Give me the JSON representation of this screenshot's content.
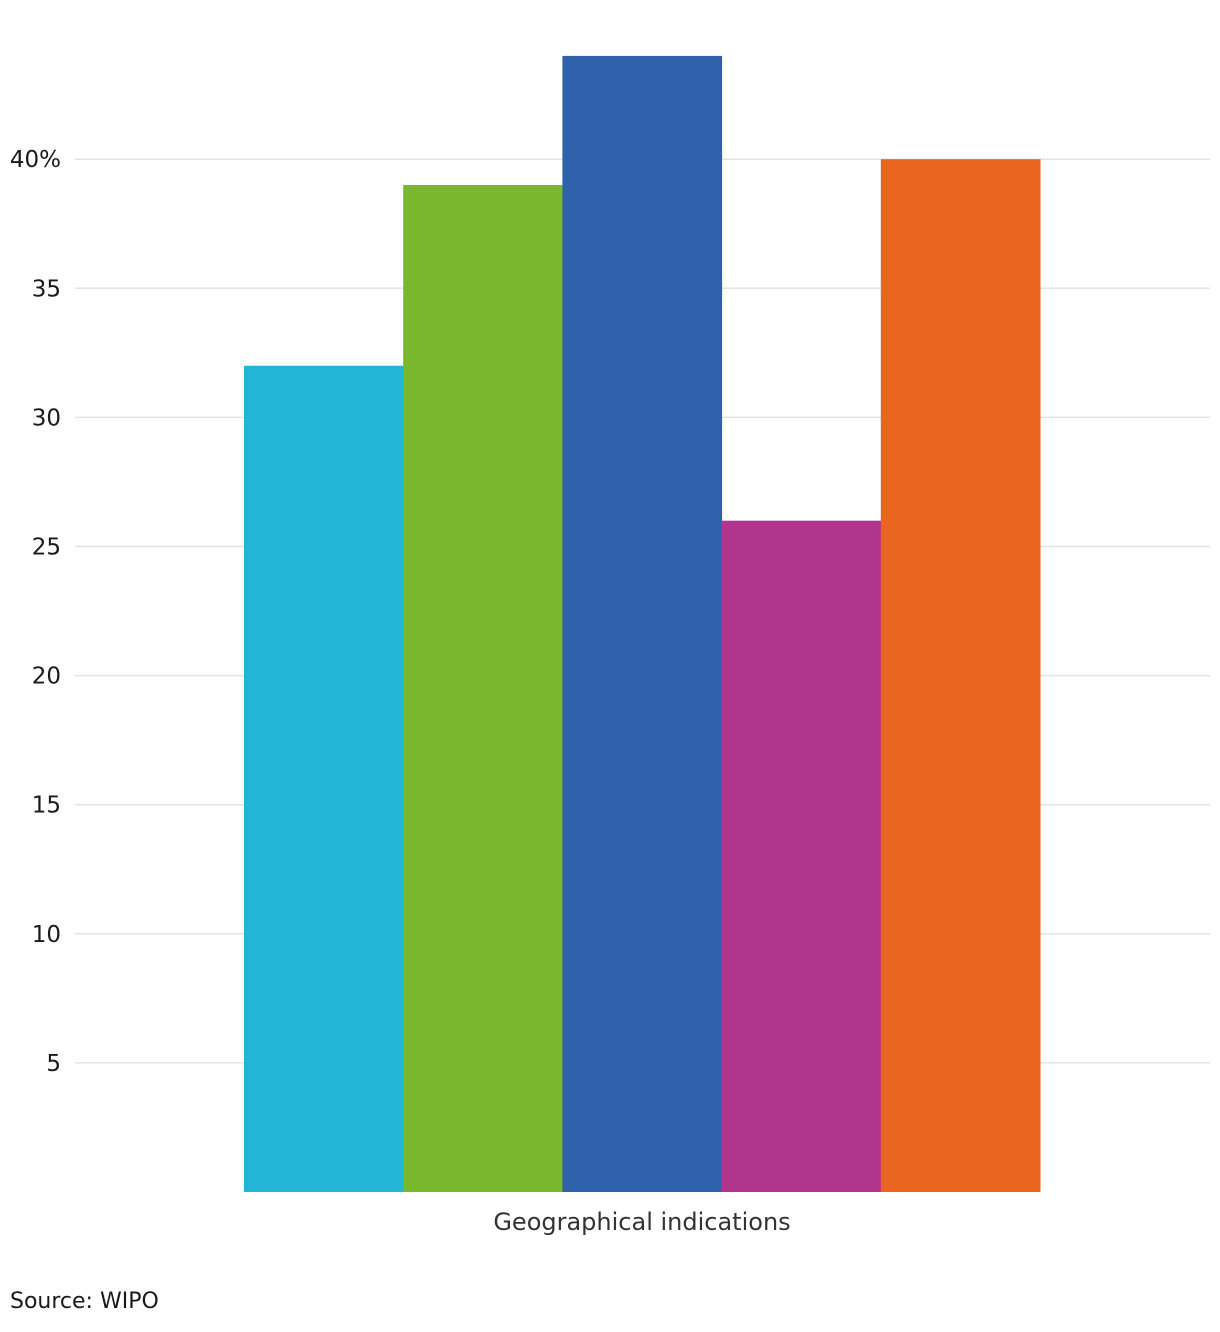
{
  "chart_data": {
    "type": "bar",
    "categories": [
      "Geographical indications"
    ],
    "series": [
      {
        "values": [
          32
        ],
        "color": "#23B5D6"
      },
      {
        "values": [
          39
        ],
        "color": "#79B82D"
      },
      {
        "values": [
          44
        ],
        "color": "#3062AC"
      },
      {
        "values": [
          26
        ],
        "color": "#B0358D"
      },
      {
        "values": [
          40
        ],
        "color": "#E96520"
      }
    ],
    "yticks": [
      5,
      10,
      15,
      20,
      25,
      30,
      35,
      40
    ],
    "ytick_labels": [
      "5",
      "10",
      "15",
      "20",
      "25",
      "30",
      "35",
      "40%"
    ],
    "ylim": [
      0,
      44
    ],
    "grid": true,
    "legend": "none",
    "title": "",
    "xlabel": "",
    "ylabel": ""
  },
  "source": "Source: WIPO",
  "colors": {
    "grid": "#e3e3e3",
    "tick_text": "#1a1a1a",
    "category_text": "#333333"
  }
}
